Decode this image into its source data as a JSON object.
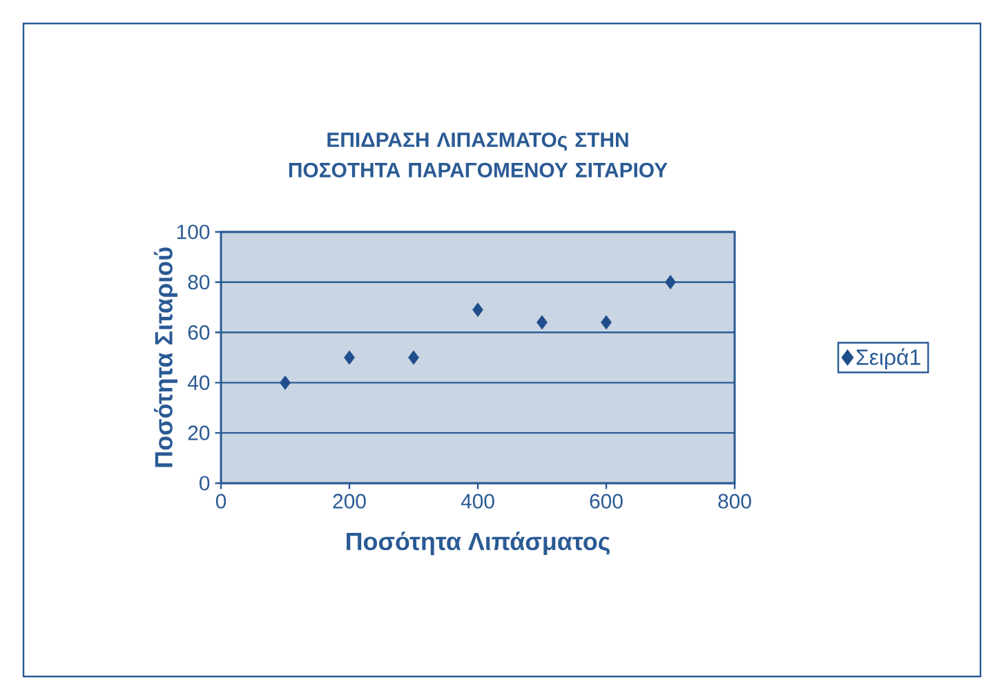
{
  "chart_data": {
    "type": "scatter",
    "title": "ΕΠΙΔΡΑΣΗ ΛΙΠΑΣΜΑΤΟς ΣΤΗΝ ΠΟΣΟΤΗΤΑ ΠΑΡΑΓΟΜΕΝΟΥ ΣΙΤΑΡΙΟΥ",
    "xlabel": "Ποσότητα Λιπάσματος",
    "ylabel": "Ποσότητα Σιταριού",
    "x": [
      100,
      200,
      300,
      400,
      500,
      600,
      700
    ],
    "series": [
      {
        "name": "Σειρά1",
        "color": "#1f4e8c",
        "values": [
          40,
          50,
          50,
          69,
          64,
          64,
          80
        ]
      }
    ],
    "xlim": [
      0,
      800
    ],
    "ylim": [
      0,
      100
    ],
    "xticks": [
      0,
      200,
      400,
      600,
      800
    ],
    "yticks": [
      0,
      20,
      40,
      60,
      80,
      100
    ],
    "grid": "y",
    "legend": "right",
    "marker": "diamond"
  }
}
